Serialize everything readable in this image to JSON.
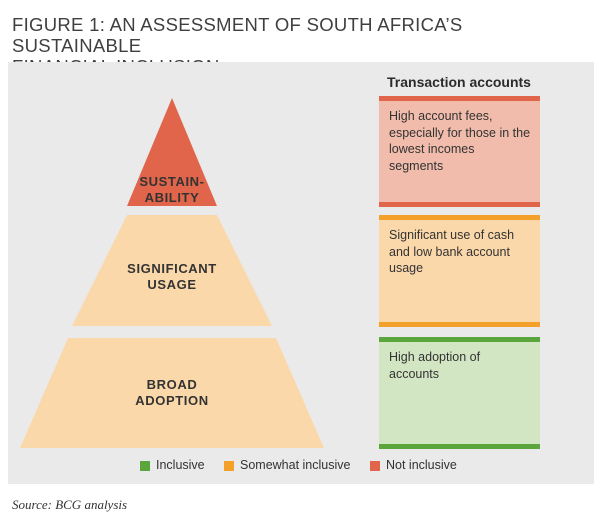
{
  "figure": {
    "title_line1": "FIGURE 1: AN ASSESSMENT OF SOUTH AFRICA’S SUSTAINABLE",
    "title_line2": "FINANCIAL INCLUSION",
    "source": "Source: BCG analysis"
  },
  "pyramid": {
    "top": {
      "line1": "SUSTAIN-",
      "line2": "ABILITY",
      "status": "not_inclusive"
    },
    "middle": {
      "line1": "SIGNIFICANT",
      "line2": "USAGE",
      "status": "somewhat_inclusive"
    },
    "bottom": {
      "line1": "BROAD",
      "line2": "ADOPTION",
      "status": "inclusive"
    }
  },
  "accounts": {
    "heading": "Transaction accounts",
    "boxes": [
      {
        "text": "High account fees, especially for those in the lowest incomes segments",
        "status": "not_inclusive"
      },
      {
        "text": "Significant use of cash and low bank account usage",
        "status": "somewhat_inclusive"
      },
      {
        "text": "High adoption of accounts",
        "status": "inclusive"
      }
    ]
  },
  "legend": [
    {
      "label": "Inclusive",
      "status": "inclusive"
    },
    {
      "label": "Somewhat inclusive",
      "status": "somewhat_inclusive"
    },
    {
      "label": "Not inclusive",
      "status": "not_inclusive"
    }
  ],
  "colors": {
    "panel_bg": "#eaeaea",
    "not_inclusive": "#e0654b",
    "not_inclusive_fill": "#f1bcab",
    "somewhat_inclusive": "#f3a12b",
    "somewhat_inclusive_fill": "#fbd8aa",
    "pyramid_tier_fill": "#fbd8aa",
    "inclusive": "#5aa53c",
    "inclusive_fill": "#d3e6c4"
  }
}
